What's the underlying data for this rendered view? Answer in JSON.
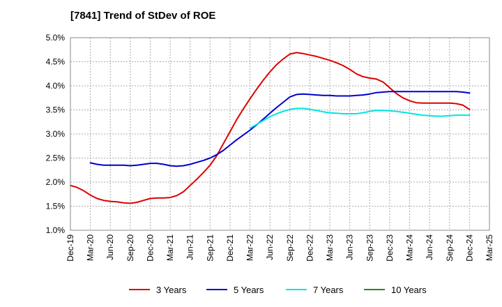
{
  "chart_data": {
    "type": "line",
    "title": "[7841]  Trend of StDev of ROE",
    "xlabel": "",
    "ylabel": "",
    "ylim": [
      1.0,
      5.0
    ],
    "grid": true,
    "legend_position": "bottom",
    "y_ticks": [
      "1.0%",
      "1.5%",
      "2.0%",
      "2.5%",
      "3.0%",
      "3.5%",
      "4.0%",
      "4.5%",
      "5.0%"
    ],
    "x_ticks": [
      "Dec-19",
      "Mar-20",
      "Jun-20",
      "Sep-20",
      "Dec-20",
      "Mar-21",
      "Jun-21",
      "Sep-21",
      "Dec-21",
      "Mar-22",
      "Jun-22",
      "Sep-22",
      "Dec-22",
      "Mar-23",
      "Jun-23",
      "Sep-23",
      "Dec-23",
      "Mar-24",
      "Jun-24",
      "Sep-24",
      "Dec-24",
      "Mar-25"
    ],
    "series": [
      {
        "name": "3 Years",
        "color": "#dd0000",
        "points": [
          [
            "Dec-19",
            1.93
          ],
          [
            "Jan-20",
            1.89
          ],
          [
            "Feb-20",
            1.82
          ],
          [
            "Mar-20",
            1.73
          ],
          [
            "Apr-20",
            1.66
          ],
          [
            "May-20",
            1.62
          ],
          [
            "Jun-20",
            1.6
          ],
          [
            "Jul-20",
            1.59
          ],
          [
            "Aug-20",
            1.57
          ],
          [
            "Sep-20",
            1.56
          ],
          [
            "Oct-20",
            1.58
          ],
          [
            "Nov-20",
            1.62
          ],
          [
            "Dec-20",
            1.66
          ],
          [
            "Jan-21",
            1.67
          ],
          [
            "Feb-21",
            1.67
          ],
          [
            "Mar-21",
            1.68
          ],
          [
            "Apr-21",
            1.72
          ],
          [
            "May-21",
            1.8
          ],
          [
            "Jun-21",
            1.93
          ],
          [
            "Jul-21",
            2.06
          ],
          [
            "Aug-21",
            2.2
          ],
          [
            "Sep-21",
            2.35
          ],
          [
            "Oct-21",
            2.55
          ],
          [
            "Nov-21",
            2.8
          ],
          [
            "Dec-21",
            3.05
          ],
          [
            "Jan-22",
            3.3
          ],
          [
            "Feb-22",
            3.52
          ],
          [
            "Mar-22",
            3.73
          ],
          [
            "Apr-22",
            3.93
          ],
          [
            "May-22",
            4.12
          ],
          [
            "Jun-22",
            4.29
          ],
          [
            "Jul-22",
            4.44
          ],
          [
            "Aug-22",
            4.56
          ],
          [
            "Sep-22",
            4.66
          ],
          [
            "Oct-22",
            4.69
          ],
          [
            "Nov-22",
            4.67
          ],
          [
            "Dec-22",
            4.64
          ],
          [
            "Jan-23",
            4.61
          ],
          [
            "Feb-23",
            4.57
          ],
          [
            "Mar-23",
            4.53
          ],
          [
            "Apr-23",
            4.48
          ],
          [
            "May-23",
            4.42
          ],
          [
            "Jun-23",
            4.34
          ],
          [
            "Jul-23",
            4.25
          ],
          [
            "Aug-23",
            4.19
          ],
          [
            "Sep-23",
            4.16
          ],
          [
            "Oct-23",
            4.14
          ],
          [
            "Nov-23",
            4.08
          ],
          [
            "Dec-23",
            3.96
          ],
          [
            "Jan-24",
            3.84
          ],
          [
            "Feb-24",
            3.75
          ],
          [
            "Mar-24",
            3.69
          ],
          [
            "Apr-24",
            3.65
          ],
          [
            "May-24",
            3.64
          ],
          [
            "Jun-24",
            3.64
          ],
          [
            "Jul-24",
            3.64
          ],
          [
            "Aug-24",
            3.64
          ],
          [
            "Sep-24",
            3.64
          ],
          [
            "Oct-24",
            3.63
          ],
          [
            "Nov-24",
            3.6
          ],
          [
            "Dec-24",
            3.51
          ]
        ]
      },
      {
        "name": "5 Years",
        "color": "#0000cc",
        "points": [
          [
            "Mar-20",
            2.4
          ],
          [
            "Apr-20",
            2.37
          ],
          [
            "May-20",
            2.35
          ],
          [
            "Jun-20",
            2.35
          ],
          [
            "Jul-20",
            2.35
          ],
          [
            "Aug-20",
            2.35
          ],
          [
            "Sep-20",
            2.34
          ],
          [
            "Oct-20",
            2.35
          ],
          [
            "Nov-20",
            2.37
          ],
          [
            "Dec-20",
            2.39
          ],
          [
            "Jan-21",
            2.39
          ],
          [
            "Feb-21",
            2.37
          ],
          [
            "Mar-21",
            2.34
          ],
          [
            "Apr-21",
            2.33
          ],
          [
            "May-21",
            2.34
          ],
          [
            "Jun-21",
            2.37
          ],
          [
            "Jul-21",
            2.41
          ],
          [
            "Aug-21",
            2.45
          ],
          [
            "Sep-21",
            2.5
          ],
          [
            "Oct-21",
            2.57
          ],
          [
            "Nov-21",
            2.66
          ],
          [
            "Dec-21",
            2.77
          ],
          [
            "Jan-22",
            2.88
          ],
          [
            "Feb-22",
            2.98
          ],
          [
            "Mar-22",
            3.08
          ],
          [
            "Apr-22",
            3.19
          ],
          [
            "May-22",
            3.31
          ],
          [
            "Jun-22",
            3.43
          ],
          [
            "Jul-22",
            3.55
          ],
          [
            "Aug-22",
            3.66
          ],
          [
            "Sep-22",
            3.77
          ],
          [
            "Oct-22",
            3.82
          ],
          [
            "Nov-22",
            3.83
          ],
          [
            "Dec-22",
            3.82
          ],
          [
            "Jan-23",
            3.81
          ],
          [
            "Feb-23",
            3.8
          ],
          [
            "Mar-23",
            3.8
          ],
          [
            "Apr-23",
            3.79
          ],
          [
            "May-23",
            3.79
          ],
          [
            "Jun-23",
            3.79
          ],
          [
            "Jul-23",
            3.8
          ],
          [
            "Aug-23",
            3.81
          ],
          [
            "Sep-23",
            3.83
          ],
          [
            "Oct-23",
            3.86
          ],
          [
            "Nov-23",
            3.87
          ],
          [
            "Dec-23",
            3.88
          ],
          [
            "Jan-24",
            3.88
          ],
          [
            "Feb-24",
            3.88
          ],
          [
            "Mar-24",
            3.88
          ],
          [
            "Apr-24",
            3.88
          ],
          [
            "May-24",
            3.88
          ],
          [
            "Jun-24",
            3.88
          ],
          [
            "Jul-24",
            3.88
          ],
          [
            "Aug-24",
            3.88
          ],
          [
            "Sep-24",
            3.88
          ],
          [
            "Oct-24",
            3.88
          ],
          [
            "Nov-24",
            3.87
          ],
          [
            "Dec-24",
            3.85
          ]
        ]
      },
      {
        "name": "7 Years",
        "color": "#00e5e5",
        "points": [
          [
            "Mar-22",
            3.12
          ],
          [
            "Apr-22",
            3.2
          ],
          [
            "May-22",
            3.28
          ],
          [
            "Jun-22",
            3.36
          ],
          [
            "Jul-22",
            3.42
          ],
          [
            "Aug-22",
            3.47
          ],
          [
            "Sep-22",
            3.51
          ],
          [
            "Oct-22",
            3.53
          ],
          [
            "Nov-22",
            3.53
          ],
          [
            "Dec-22",
            3.51
          ],
          [
            "Jan-23",
            3.49
          ],
          [
            "Feb-23",
            3.46
          ],
          [
            "Mar-23",
            3.44
          ],
          [
            "Apr-23",
            3.43
          ],
          [
            "May-23",
            3.42
          ],
          [
            "Jun-23",
            3.42
          ],
          [
            "Jul-23",
            3.42
          ],
          [
            "Aug-23",
            3.44
          ],
          [
            "Sep-23",
            3.47
          ],
          [
            "Oct-23",
            3.49
          ],
          [
            "Nov-23",
            3.49
          ],
          [
            "Dec-23",
            3.48
          ],
          [
            "Jan-24",
            3.47
          ],
          [
            "Feb-24",
            3.45
          ],
          [
            "Mar-24",
            3.43
          ],
          [
            "Apr-24",
            3.41
          ],
          [
            "May-24",
            3.39
          ],
          [
            "Jun-24",
            3.38
          ],
          [
            "Jul-24",
            3.37
          ],
          [
            "Aug-24",
            3.37
          ],
          [
            "Sep-24",
            3.38
          ],
          [
            "Oct-24",
            3.39
          ],
          [
            "Nov-24",
            3.39
          ],
          [
            "Dec-24",
            3.39
          ]
        ]
      },
      {
        "name": "10 Years",
        "color": "#228b22",
        "points": []
      }
    ]
  }
}
